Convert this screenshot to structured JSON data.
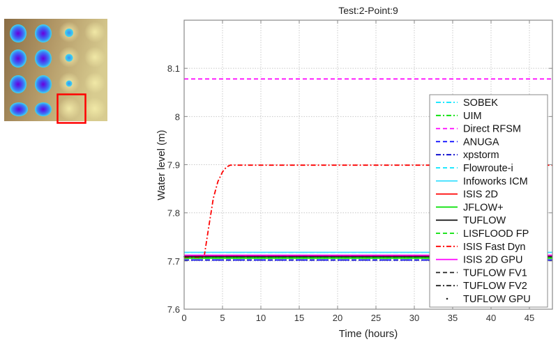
{
  "thumbnail": {
    "description": "Map of test grid showing flood depth pond pattern (4x4 grid of depressions)",
    "grid_rows": 4,
    "grid_cols": 4,
    "highlighted_cell": {
      "row": 4,
      "col": 3
    },
    "highlight_color": "#ff0000",
    "background_colors": [
      "#8c6f48",
      "#e8e0a0"
    ],
    "water_colors": [
      "#3fd8f0",
      "#3b5cf0",
      "#6a00d8"
    ],
    "wet_cells": [
      {
        "row": 1,
        "col": 1,
        "size": "large"
      },
      {
        "row": 1,
        "col": 2,
        "size": "large"
      },
      {
        "row": 1,
        "col": 3,
        "size": "small"
      },
      {
        "row": 2,
        "col": 1,
        "size": "large"
      },
      {
        "row": 2,
        "col": 2,
        "size": "large"
      },
      {
        "row": 2,
        "col": 3,
        "size": "small"
      },
      {
        "row": 3,
        "col": 1,
        "size": "large"
      },
      {
        "row": 3,
        "col": 2,
        "size": "large"
      },
      {
        "row": 3,
        "col": 3,
        "size": "tiny"
      },
      {
        "row": 4,
        "col": 1,
        "size": "large"
      },
      {
        "row": 4,
        "col": 2,
        "size": "large"
      }
    ]
  },
  "chart_data": {
    "type": "line",
    "title": "Test:2-Point:9",
    "xlabel": "Time (hours)",
    "ylabel": "Water level (m)",
    "xlim": [
      0,
      48
    ],
    "ylim": [
      7.6,
      8.2
    ],
    "xticks": [
      0,
      5,
      10,
      15,
      20,
      25,
      30,
      35,
      40,
      45
    ],
    "yticks": [
      7.6,
      7.7,
      7.8,
      7.9,
      8.0,
      8.1
    ],
    "ytick_labels": [
      "7.6",
      "7.7",
      "7.8",
      "7.9",
      "8",
      "8.1"
    ],
    "grid": true,
    "legend_position": "inside right",
    "series": [
      {
        "name": "SOBEK",
        "color": "#00e5ff",
        "style": "dashdot",
        "x": [
          0,
          48
        ],
        "y": [
          7.718,
          7.718
        ]
      },
      {
        "name": "UIM",
        "color": "#00e000",
        "style": "dashdot",
        "x": [
          0,
          48
        ],
        "y": [
          7.706,
          7.706
        ]
      },
      {
        "name": "Direct RFSM",
        "color": "#ff00ff",
        "style": "dashed",
        "x": [
          0,
          48
        ],
        "y": [
          8.078,
          8.078
        ]
      },
      {
        "name": "ANUGA",
        "color": "#0000ff",
        "style": "dashed",
        "x": [
          0,
          48
        ],
        "y": [
          7.702,
          7.702
        ]
      },
      {
        "name": "xpstorm",
        "color": "#0000cc",
        "style": "dashdot",
        "x": [
          0,
          48
        ],
        "y": [
          7.702,
          7.702
        ]
      },
      {
        "name": "Flowroute-i",
        "color": "#00e5ff",
        "style": "dashed",
        "x": [
          0,
          48
        ],
        "y": [
          7.718,
          7.718
        ]
      },
      {
        "name": "Infoworks ICM",
        "color": "#40e0ff",
        "style": "solid",
        "x": [
          0,
          48
        ],
        "y": [
          7.718,
          7.718
        ]
      },
      {
        "name": "ISIS 2D",
        "color": "#ff0000",
        "style": "solid",
        "x": [
          0,
          48
        ],
        "y": [
          7.71,
          7.71
        ]
      },
      {
        "name": "JFLOW+",
        "color": "#00e000",
        "style": "solid",
        "x": [
          0,
          48
        ],
        "y": [
          7.706,
          7.706
        ]
      },
      {
        "name": "TUFLOW",
        "color": "#222222",
        "style": "solid",
        "x": [
          0,
          48
        ],
        "y": [
          7.709,
          7.709
        ]
      },
      {
        "name": "LISFLOOD FP",
        "color": "#00e000",
        "style": "dashed",
        "x": [
          0,
          48
        ],
        "y": [
          7.706,
          7.706
        ]
      },
      {
        "name": "ISIS Fast Dyn",
        "color": "#ff0000",
        "style": "dashdot",
        "x": [
          0,
          2.6,
          3.2,
          3.8,
          4.4,
          5.0,
          5.5,
          6.0,
          48
        ],
        "y": [
          7.708,
          7.708,
          7.77,
          7.83,
          7.865,
          7.885,
          7.895,
          7.899,
          7.899
        ]
      },
      {
        "name": "ISIS 2D GPU",
        "color": "#ff00ff",
        "style": "solid",
        "x": [
          0,
          48
        ],
        "y": [
          7.712,
          7.712
        ]
      },
      {
        "name": "TUFLOW FV1",
        "color": "#222222",
        "style": "dashed",
        "x": [
          0,
          48
        ],
        "y": [
          7.709,
          7.709
        ]
      },
      {
        "name": "TUFLOW FV2",
        "color": "#222222",
        "style": "dashdot",
        "x": [
          0,
          48
        ],
        "y": [
          7.709,
          7.709
        ]
      },
      {
        "name": "TUFLOW GPU",
        "color": "#222222",
        "style": "dot",
        "x": [
          0,
          48
        ],
        "y": [
          7.709,
          7.709
        ]
      }
    ]
  }
}
